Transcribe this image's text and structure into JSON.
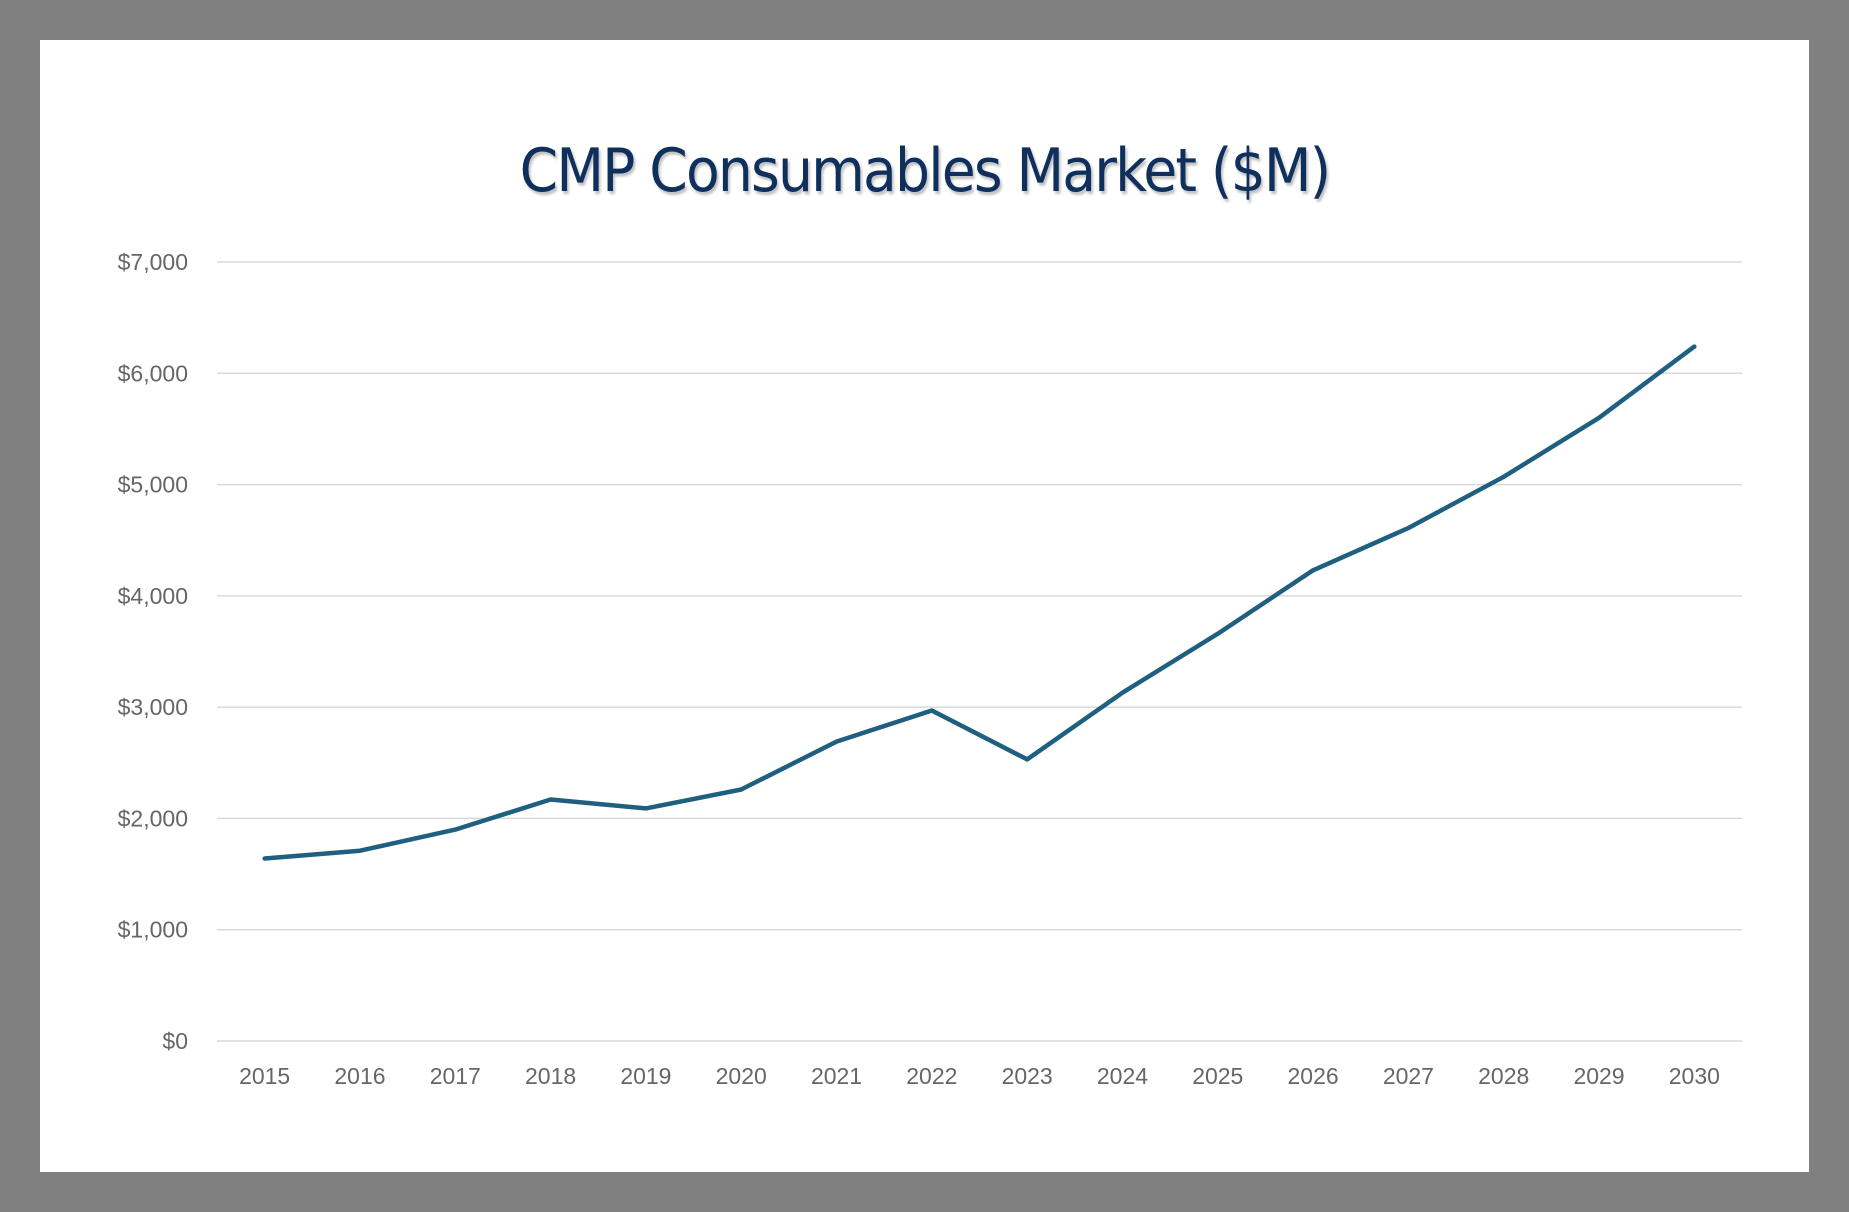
{
  "chart_data": {
    "type": "line",
    "title": "CMP Consumables Market ($M)",
    "xlabel": "",
    "ylabel": "",
    "categories": [
      "2015",
      "2016",
      "2017",
      "2018",
      "2019",
      "2020",
      "2021",
      "2022",
      "2023",
      "2024",
      "2025",
      "2026",
      "2027",
      "2028",
      "2029",
      "2030"
    ],
    "series": [
      {
        "name": "CMP Consumables Market",
        "color": "#1f5f7f",
        "values": [
          1640,
          1710,
          1900,
          2170,
          2090,
          2260,
          2690,
          2970,
          2530,
          3130,
          3660,
          4230,
          4610,
          5070,
          5600,
          6240
        ]
      }
    ],
    "ylim": [
      0,
      7000
    ],
    "yticks": [
      0,
      1000,
      2000,
      3000,
      4000,
      5000,
      6000,
      7000
    ],
    "ytick_labels": [
      "$0",
      "$1,000",
      "$2,000",
      "$3,000",
      "$4,000",
      "$5,000",
      "$6,000",
      "$7,000"
    ],
    "grid": true,
    "legend": "none"
  },
  "colors": {
    "background": "#808080",
    "card": "#ffffff",
    "title": "#0f2f5c",
    "gridline": "#d9d9d9",
    "tick_label": "#666666"
  }
}
